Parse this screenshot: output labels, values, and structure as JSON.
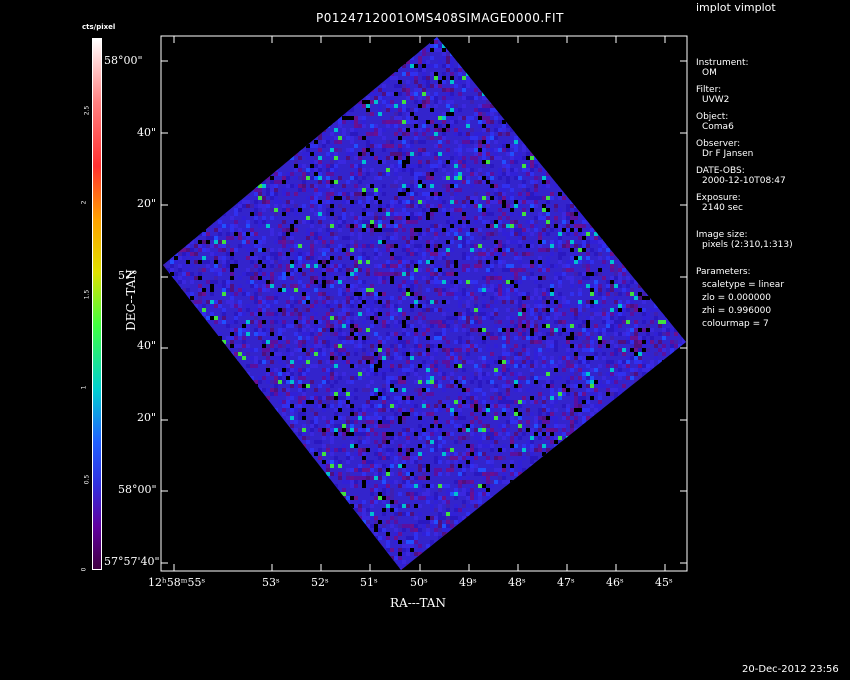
{
  "app": {
    "title": "implot vimplot"
  },
  "plot": {
    "title": "P0124712001OMS408SIMAGE0000.FIT",
    "xlabel": "RA---TAN",
    "ylabel": "DEC--TAN",
    "colorbar_label": "cts/pixel",
    "colorbar_ticks": [
      "0",
      "0.5",
      "1",
      "1.5",
      "2",
      "2.5"
    ],
    "y_ticks": [
      "58°00\"",
      "40\"",
      "20\"",
      "57°",
      "40\"",
      "20\"",
      "58°00\"",
      "57°57'40\""
    ],
    "x_ticks": [
      "12ʰ58ᵐ55ˢ",
      "53ˢ",
      "52ˢ",
      "51ˢ",
      "50ˢ",
      "49ˢ",
      "48ˢ",
      "47ˢ",
      "46ˢ",
      "45ˢ"
    ]
  },
  "info": {
    "instrument_label": "Instrument:",
    "instrument": "OM",
    "filter_label": "Filter:",
    "filter": "UVW2",
    "object_label": "Object:",
    "object": "Coma6",
    "observer_label": "Observer:",
    "observer": "Dr F Jansen",
    "date_label": "DATE-OBS:",
    "date": "2000-12-10T08:47",
    "exposure_label": "Exposure:",
    "exposure": "2140 sec",
    "imagesize_label": "Image size:",
    "imagesize": "pixels (2:310,1:313)",
    "params_label": "Parameters:",
    "scaletype": "scaletype = linear",
    "zlo": "zlo = 0.000000",
    "zhi": "zhi = 0.996000",
    "colourmap": "colourmap =   7"
  },
  "footer": {
    "timestamp": "20-Dec-2012 23:56"
  },
  "colors": {
    "background": "#000000",
    "foreground": "#ffffff"
  }
}
